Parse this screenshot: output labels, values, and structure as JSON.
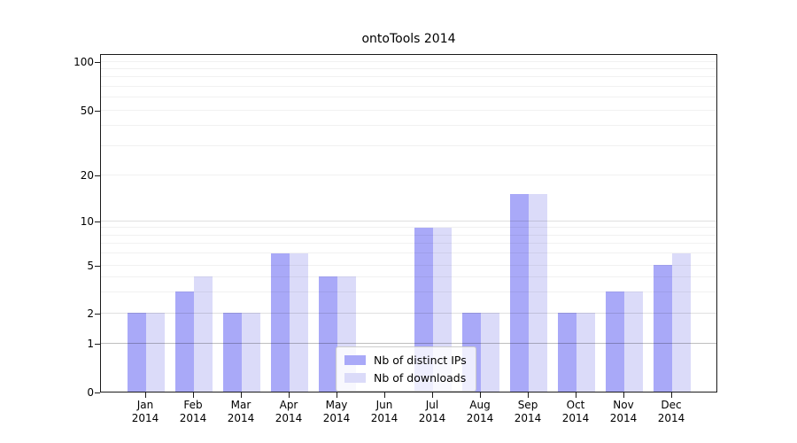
{
  "chart_data": {
    "type": "bar",
    "title": "ontoTools 2014",
    "categories": [
      "Jan",
      "Feb",
      "Mar",
      "Apr",
      "May",
      "Jun",
      "Jul",
      "Aug",
      "Sep",
      "Oct",
      "Nov",
      "Dec"
    ],
    "category_year": "2014",
    "series": [
      {
        "name": "Nb of distinct IPs",
        "color": "#a9a9f8",
        "values": [
          2,
          3,
          2,
          6,
          4,
          0,
          9,
          2,
          15,
          2,
          3,
          5
        ]
      },
      {
        "name": "Nb of downloads",
        "color": "#dbdbf9",
        "values": [
          2,
          4,
          2,
          6,
          4,
          0,
          9,
          2,
          15,
          2,
          3,
          6
        ]
      }
    ],
    "xlabel": "",
    "ylabel": "",
    "y_axis": {
      "scale": "log-like with 0 and 1 shown",
      "tick_labels": [
        "0",
        "1",
        "2",
        "5",
        "10",
        "20",
        "50",
        "100"
      ],
      "major_ticks": [
        0,
        1,
        2,
        5,
        10,
        20,
        50,
        100
      ],
      "minor_gridlines": [
        3,
        4,
        6,
        7,
        8,
        9,
        30,
        40,
        60,
        70,
        80,
        90
      ],
      "ylim": [
        0,
        100
      ]
    },
    "grid": "on",
    "legend_position": "lower center",
    "colors": {
      "axis": "#1a1a1a",
      "gridline_minor": "rgba(0,0,0,0.055)",
      "gridline_medium": "rgba(0,0,0,0.12)",
      "gridline_dark": "rgba(0,0,0,0.25)"
    }
  }
}
